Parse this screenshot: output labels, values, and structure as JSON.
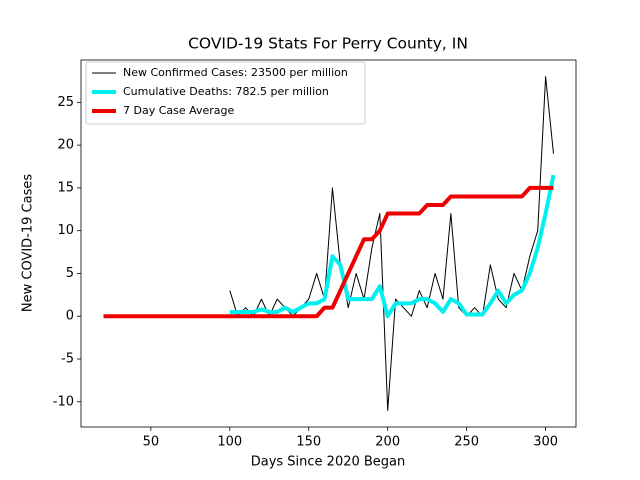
{
  "chart_data": {
    "type": "line",
    "title": "COVID-19 Stats For Perry County, IN",
    "xlabel": "Days Since 2020 Began",
    "ylabel": "New COVID-19 Cases",
    "x": [
      20,
      25,
      30,
      35,
      40,
      45,
      50,
      55,
      60,
      65,
      70,
      75,
      80,
      85,
      90,
      95,
      100,
      105,
      110,
      115,
      120,
      125,
      130,
      135,
      140,
      145,
      150,
      155,
      160,
      165,
      170,
      175,
      180,
      185,
      190,
      195,
      200,
      205,
      210,
      215,
      220,
      225,
      230,
      235,
      240,
      245,
      250,
      255,
      260,
      265,
      270,
      275,
      280,
      285,
      290,
      295,
      300,
      305
    ],
    "series": [
      {
        "name": "New Confirmed Cases: 23500 per million",
        "color": "#000000",
        "width": 1,
        "values": [
          null,
          null,
          null,
          null,
          null,
          null,
          null,
          null,
          null,
          null,
          null,
          null,
          null,
          null,
          null,
          null,
          3,
          0,
          1,
          0,
          2,
          0,
          2,
          1,
          0,
          1,
          2,
          5,
          2,
          15,
          6,
          1,
          5,
          2,
          8,
          12,
          -11,
          2,
          1,
          0,
          3,
          1,
          5,
          2,
          12,
          1,
          0,
          1,
          0,
          6,
          2,
          1,
          5,
          3,
          7,
          10,
          28,
          19
        ]
      },
      {
        "name": "Cumulative Deaths: 782.5 per million",
        "color": "#00f0f0",
        "width": 4,
        "values": [
          null,
          null,
          null,
          null,
          null,
          null,
          null,
          null,
          null,
          null,
          null,
          null,
          null,
          null,
          null,
          null,
          0.5,
          0.5,
          0.5,
          0.5,
          0.8,
          0.5,
          0.5,
          1,
          0.5,
          1,
          1.5,
          1.5,
          2,
          7,
          6,
          2,
          2,
          2,
          2,
          3.5,
          0,
          1.5,
          1.5,
          1.5,
          2,
          2,
          1.5,
          0.5,
          2,
          1.5,
          0.2,
          0.2,
          0.2,
          1.5,
          3,
          1.5,
          2.5,
          3,
          5,
          8,
          12,
          16.5
        ]
      },
      {
        "name": "7 Day Case Average",
        "color": "#ee0000",
        "width": 4,
        "values": [
          0,
          0,
          0,
          0,
          0,
          0,
          0,
          0,
          0,
          0,
          0,
          0,
          0,
          0,
          0,
          0,
          0,
          0,
          0,
          0,
          0,
          0,
          0,
          0,
          0,
          0,
          0,
          0,
          1,
          1,
          3,
          5,
          7,
          9,
          9,
          10,
          12,
          12,
          12,
          12,
          12,
          13,
          13,
          13,
          14,
          14,
          14,
          14,
          14,
          14,
          14,
          14,
          14,
          14,
          15,
          15,
          15,
          15
        ]
      }
    ],
    "xlim": [
      5.75,
      319.25
    ],
    "xticks": [
      50,
      100,
      150,
      200,
      250,
      300
    ],
    "ylim": [
      -12.95,
      29.95
    ],
    "yticks": [
      -10,
      -5,
      0,
      5,
      10,
      15,
      20,
      25
    ],
    "legend": "upper left",
    "grid": false
  }
}
